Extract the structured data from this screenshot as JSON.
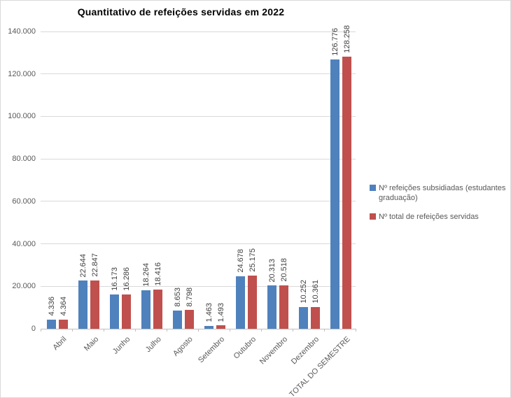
{
  "chart_data": {
    "type": "bar",
    "title": "Quantitativo de refeições servidas em 2022",
    "categories": [
      "Abril",
      "Maio",
      "Junho",
      "Julho",
      "Agosto",
      "Setembro",
      "Outubro",
      "Novembro",
      "Dezembro",
      "TOTAL DO SEMESTRE"
    ],
    "series": [
      {
        "name": "Nº refeições subsidiadas (estudantes graduação)",
        "color": "#4F81BD",
        "values": [
          4336,
          22644,
          16173,
          18264,
          8653,
          1463,
          24678,
          20313,
          10252,
          126776
        ],
        "labels": [
          "4.336",
          "22.644",
          "16.173",
          "18.264",
          "8.653",
          "1.463",
          "24.678",
          "20.313",
          "10.252",
          "126.776"
        ]
      },
      {
        "name": "Nº total de refeições servidas",
        "color": "#C0504D",
        "values": [
          4364,
          22847,
          16286,
          18416,
          8798,
          1493,
          25175,
          20518,
          10361,
          128258
        ],
        "labels": [
          "4.364",
          "22.847",
          "16.286",
          "18.416",
          "8.798",
          "1.493",
          "25.175",
          "20.518",
          "10.361",
          "128.258"
        ]
      }
    ],
    "y_axis": {
      "min": 0,
      "max": 140000,
      "step": 20000,
      "tick_labels": [
        "0",
        "20.000",
        "40.000",
        "60.000",
        "80.000",
        "100.000",
        "120.000",
        "140.000"
      ]
    },
    "xlabel": "",
    "ylabel": "",
    "grid": true,
    "legend_position": "right",
    "colors": {
      "gridline": "#d9d9d9",
      "axis_line": "#bfbfbf",
      "axis_text": "#595959",
      "data_label_text": "#3f3f3f",
      "title_text": "#000000"
    }
  }
}
